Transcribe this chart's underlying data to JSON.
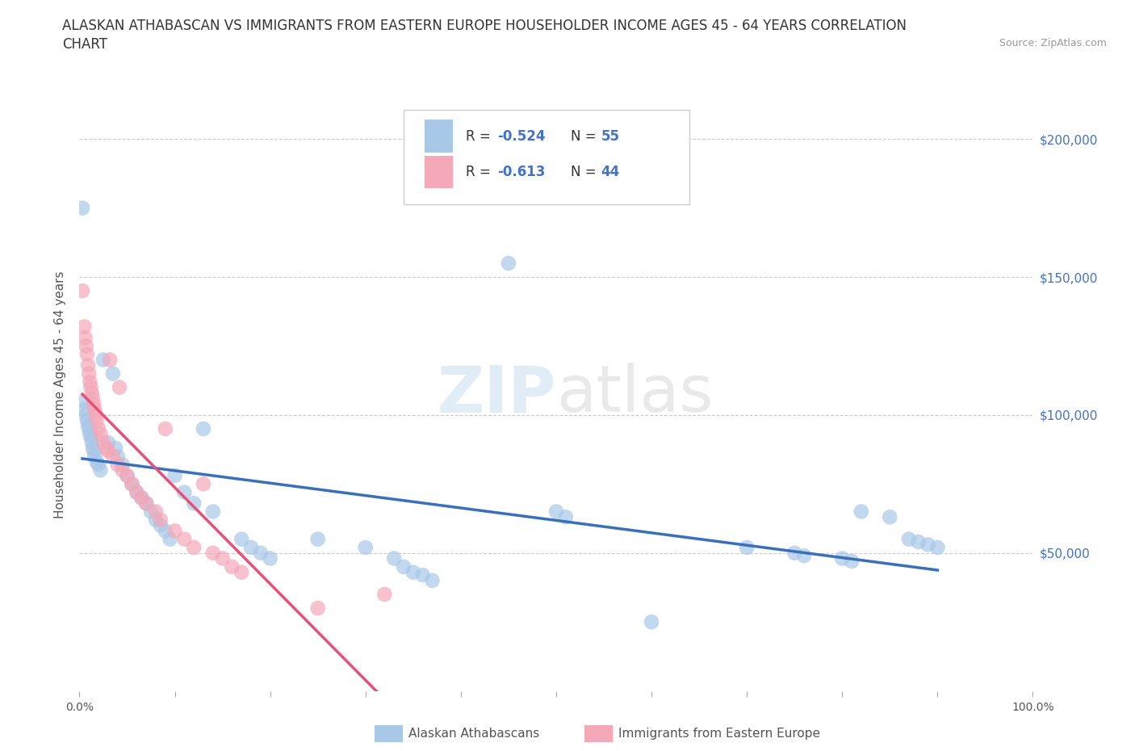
{
  "title_line1": "ALASKAN ATHABASCAN VS IMMIGRANTS FROM EASTERN EUROPE HOUSEHOLDER INCOME AGES 45 - 64 YEARS CORRELATION",
  "title_line2": "CHART",
  "source_text": "Source: ZipAtlas.com",
  "ylabel": "Householder Income Ages 45 - 64 years",
  "watermark_zip": "ZIP",
  "watermark_atlas": "atlas",
  "blue_color": "#a8c8e8",
  "pink_color": "#f4a8b8",
  "blue_line_color": "#3a6fba",
  "pink_line_color": "#e8507a",
  "dashed_line_color": "#f4a8b8",
  "title_fontsize": 13,
  "axis_label_fontsize": 11,
  "tick_fontsize": 10,
  "background_color": "#ffffff",
  "scatter_blue": [
    [
      0.003,
      175000
    ],
    [
      0.005,
      105000
    ],
    [
      0.006,
      102000
    ],
    [
      0.007,
      100000
    ],
    [
      0.008,
      98000
    ],
    [
      0.009,
      96000
    ],
    [
      0.01,
      95000
    ],
    [
      0.011,
      93000
    ],
    [
      0.012,
      92000
    ],
    [
      0.013,
      90000
    ],
    [
      0.014,
      88000
    ],
    [
      0.015,
      87000
    ],
    [
      0.016,
      85000
    ],
    [
      0.018,
      83000
    ],
    [
      0.02,
      82000
    ],
    [
      0.022,
      80000
    ],
    [
      0.025,
      120000
    ],
    [
      0.03,
      90000
    ],
    [
      0.035,
      115000
    ],
    [
      0.038,
      88000
    ],
    [
      0.04,
      85000
    ],
    [
      0.045,
      82000
    ],
    [
      0.05,
      78000
    ],
    [
      0.055,
      75000
    ],
    [
      0.06,
      72000
    ],
    [
      0.065,
      70000
    ],
    [
      0.07,
      68000
    ],
    [
      0.075,
      65000
    ],
    [
      0.08,
      62000
    ],
    [
      0.085,
      60000
    ],
    [
      0.09,
      58000
    ],
    [
      0.095,
      55000
    ],
    [
      0.1,
      78000
    ],
    [
      0.11,
      72000
    ],
    [
      0.12,
      68000
    ],
    [
      0.13,
      95000
    ],
    [
      0.14,
      65000
    ],
    [
      0.17,
      55000
    ],
    [
      0.18,
      52000
    ],
    [
      0.19,
      50000
    ],
    [
      0.2,
      48000
    ],
    [
      0.25,
      55000
    ],
    [
      0.3,
      52000
    ],
    [
      0.33,
      48000
    ],
    [
      0.34,
      45000
    ],
    [
      0.35,
      43000
    ],
    [
      0.36,
      42000
    ],
    [
      0.37,
      40000
    ],
    [
      0.45,
      155000
    ],
    [
      0.5,
      65000
    ],
    [
      0.51,
      63000
    ],
    [
      0.6,
      25000
    ],
    [
      0.7,
      52000
    ],
    [
      0.75,
      50000
    ],
    [
      0.76,
      49000
    ],
    [
      0.8,
      48000
    ],
    [
      0.81,
      47000
    ],
    [
      0.82,
      65000
    ],
    [
      0.85,
      63000
    ],
    [
      0.87,
      55000
    ],
    [
      0.88,
      54000
    ],
    [
      0.89,
      53000
    ],
    [
      0.9,
      52000
    ]
  ],
  "scatter_pink": [
    [
      0.003,
      145000
    ],
    [
      0.005,
      132000
    ],
    [
      0.006,
      128000
    ],
    [
      0.007,
      125000
    ],
    [
      0.008,
      122000
    ],
    [
      0.009,
      118000
    ],
    [
      0.01,
      115000
    ],
    [
      0.011,
      112000
    ],
    [
      0.012,
      110000
    ],
    [
      0.013,
      108000
    ],
    [
      0.014,
      106000
    ],
    [
      0.015,
      104000
    ],
    [
      0.016,
      102000
    ],
    [
      0.017,
      100000
    ],
    [
      0.018,
      98000
    ],
    [
      0.02,
      95000
    ],
    [
      0.022,
      93000
    ],
    [
      0.025,
      90000
    ],
    [
      0.028,
      88000
    ],
    [
      0.03,
      87000
    ],
    [
      0.032,
      120000
    ],
    [
      0.035,
      85000
    ],
    [
      0.04,
      82000
    ],
    [
      0.042,
      110000
    ],
    [
      0.045,
      80000
    ],
    [
      0.05,
      78000
    ],
    [
      0.055,
      75000
    ],
    [
      0.06,
      72000
    ],
    [
      0.065,
      70000
    ],
    [
      0.07,
      68000
    ],
    [
      0.08,
      65000
    ],
    [
      0.085,
      62000
    ],
    [
      0.09,
      95000
    ],
    [
      0.1,
      58000
    ],
    [
      0.11,
      55000
    ],
    [
      0.12,
      52000
    ],
    [
      0.13,
      75000
    ],
    [
      0.14,
      50000
    ],
    [
      0.15,
      48000
    ],
    [
      0.16,
      45000
    ],
    [
      0.17,
      43000
    ],
    [
      0.25,
      30000
    ],
    [
      0.32,
      35000
    ]
  ],
  "xlim": [
    0.0,
    1.0
  ],
  "ylim": [
    0,
    215000
  ],
  "yticks": [
    0,
    50000,
    100000,
    150000,
    200000
  ],
  "xticks": [
    0.0,
    0.1,
    0.2,
    0.3,
    0.4,
    0.5,
    0.6,
    0.7,
    0.8,
    0.9,
    1.0
  ],
  "xtick_labels": [
    "0.0%",
    "",
    "",
    "",
    "",
    "",
    "",
    "",
    "",
    "",
    "100.0%"
  ],
  "right_ytick_labels": [
    "$50,000",
    "$100,000",
    "$150,000",
    "$200,000"
  ],
  "right_ytick_values": [
    50000,
    100000,
    150000,
    200000
  ]
}
